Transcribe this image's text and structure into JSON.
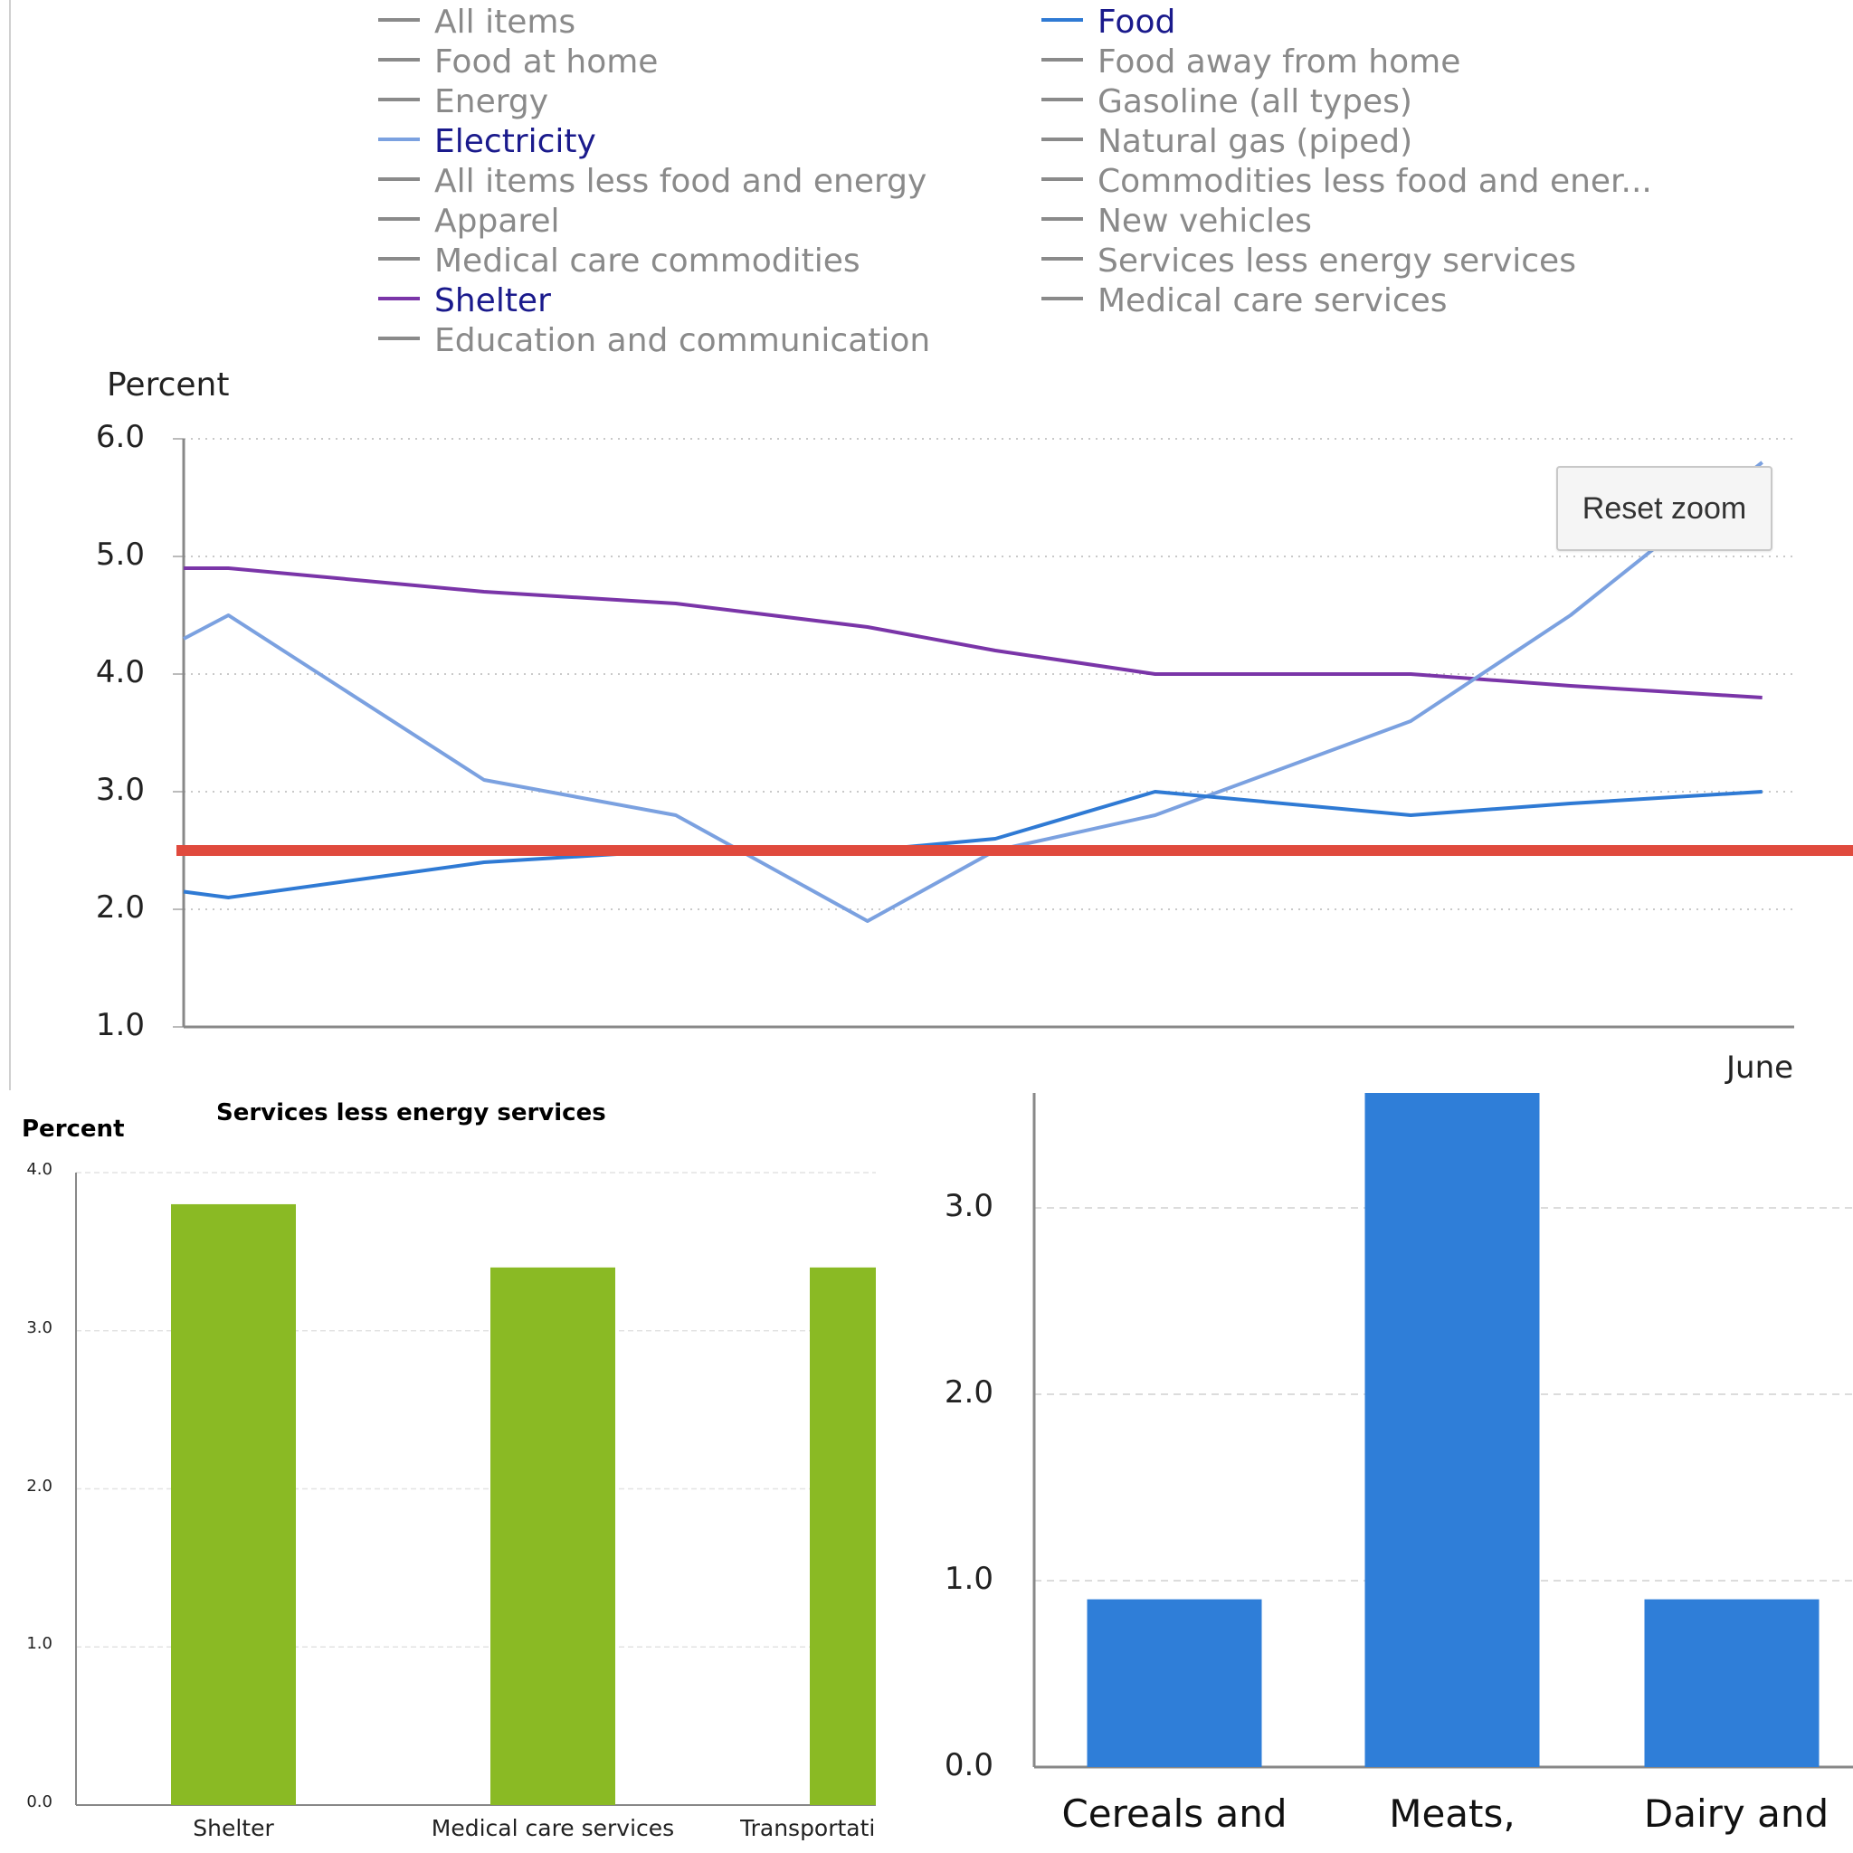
{
  "chart_data": [
    {
      "type": "line",
      "ylabel": "Percent",
      "ylim": [
        1.0,
        6.0
      ],
      "yticks": [
        "6.0",
        "5.0",
        "4.0",
        "3.0",
        "2.0",
        "1.0"
      ],
      "xtick_label": "June",
      "grid": "dotted horizontal",
      "legend": {
        "placement": "top",
        "left_column": [
          {
            "name": "All items",
            "active": false
          },
          {
            "name": "Food at home",
            "active": false
          },
          {
            "name": "Energy",
            "active": false
          },
          {
            "name": "Electricity",
            "active": true,
            "color": "#7ba1e0"
          },
          {
            "name": "All items less food and energy",
            "active": false
          },
          {
            "name": "Apparel",
            "active": false
          },
          {
            "name": "Medical care commodities",
            "active": false
          },
          {
            "name": "Shelter",
            "active": true,
            "color": "#7a35a8"
          },
          {
            "name": "Education and communication",
            "active": false
          }
        ],
        "right_column": [
          {
            "name": "Food",
            "active": true,
            "color": "#2f7ad4"
          },
          {
            "name": "Food away from home",
            "active": false
          },
          {
            "name": "Gasoline (all types)",
            "active": false
          },
          {
            "name": "Natural gas (piped)",
            "active": false
          },
          {
            "name": "Commodities less food and ener...",
            "active": false
          },
          {
            "name": "New vehicles",
            "active": false
          },
          {
            "name": "Services less energy services",
            "active": false
          },
          {
            "name": "Medical care services",
            "active": false
          }
        ]
      },
      "x": [
        0,
        1,
        2,
        3,
        4,
        5,
        6,
        7,
        8,
        9,
        10,
        11,
        12
      ],
      "series": [
        {
          "name": "Shelter",
          "color": "#7a35a8",
          "values": [
            4.9,
            4.9,
            4.7,
            4.6,
            4.4,
            4.2,
            4.0,
            4.0,
            3.9,
            3.8,
            null,
            null,
            null
          ]
        },
        {
          "name": "Electricity",
          "color": "#7ba1e0",
          "values": [
            4.3,
            4.5,
            3.1,
            2.8,
            1.9,
            2.5,
            2.8,
            3.6,
            4.5,
            5.8,
            null,
            null,
            null
          ]
        },
        {
          "name": "Food",
          "color": "#2f7ad4",
          "values": [
            2.15,
            2.1,
            2.4,
            2.5,
            2.5,
            2.6,
            3.0,
            2.8,
            2.9,
            3.0,
            null,
            null,
            null
          ]
        }
      ],
      "point_x": [
        0,
        0.35,
        2.35,
        3.85,
        5.35,
        6.35,
        7.6,
        9.6,
        10.85,
        12.35
      ],
      "x_domain": [
        0,
        12.6
      ],
      "reference_line": {
        "value": 2.5,
        "color": "#e04a3d"
      },
      "reset_zoom_label": "Reset zoom"
    },
    {
      "type": "bar",
      "title": "Services less energy services",
      "ylabel": "Percent",
      "ylim": [
        0.0,
        4.0
      ],
      "yticks": [
        "4.0",
        "3.0",
        "2.0",
        "1.0",
        "0.0"
      ],
      "categories": [
        "Shelter",
        "Medical care services",
        "Transportati"
      ],
      "values": [
        3.8,
        3.4,
        3.4
      ],
      "color": "#8aba24"
    },
    {
      "type": "bar",
      "ylim": [
        0.0,
        3.6
      ],
      "yticks": [
        "3.0",
        "2.0",
        "1.0",
        "0.0"
      ],
      "categories": [
        "Cereals and",
        "Meats,",
        "Dairy and"
      ],
      "values": [
        0.9,
        3.7,
        0.9
      ],
      "color": "#2f7ed8"
    }
  ]
}
